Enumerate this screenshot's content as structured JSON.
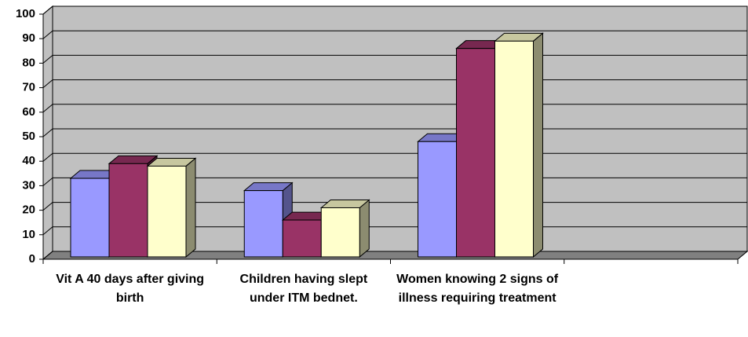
{
  "chart_data": {
    "type": "bar",
    "categories": [
      "Vit A 40 days after giving birth",
      "Children having slept under ITM bednet.",
      "Women knowing 2 signs of illness requiring treatment",
      null
    ],
    "series": [
      {
        "color": "#9999ff",
        "values": [
          33,
          28,
          48,
          null
        ]
      },
      {
        "color": "#993366",
        "values": [
          39,
          16,
          86,
          null
        ]
      },
      {
        "color": "#ffffcc",
        "values": [
          38,
          21,
          89,
          null
        ]
      }
    ],
    "ylim": [
      0,
      100
    ],
    "yticks": [
      0,
      10,
      20,
      30,
      40,
      50,
      60,
      70,
      80,
      90,
      100
    ],
    "grid": true
  }
}
